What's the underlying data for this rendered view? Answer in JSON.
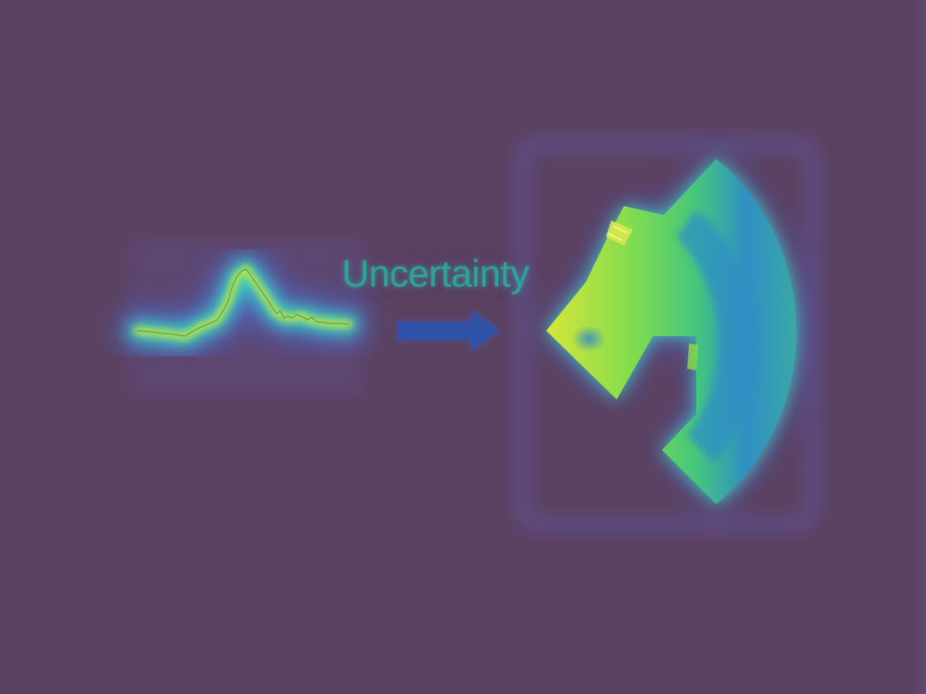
{
  "label": {
    "text": "Uncertainty"
  },
  "colors": {
    "background": "#5b4160",
    "glow_outer": "#4b6ad8",
    "glow_mid": "#39d7c0",
    "heat_yellow": "#c6e63a",
    "heat_green": "#4fd26a",
    "heat_blue": "#2f8fc4",
    "arrow": "#2f52a8",
    "label": "#2aa59a"
  },
  "icons": {
    "signal": "waveform-icon",
    "arrow": "right-arrow-icon",
    "fan": "fan-wedge-icon"
  }
}
